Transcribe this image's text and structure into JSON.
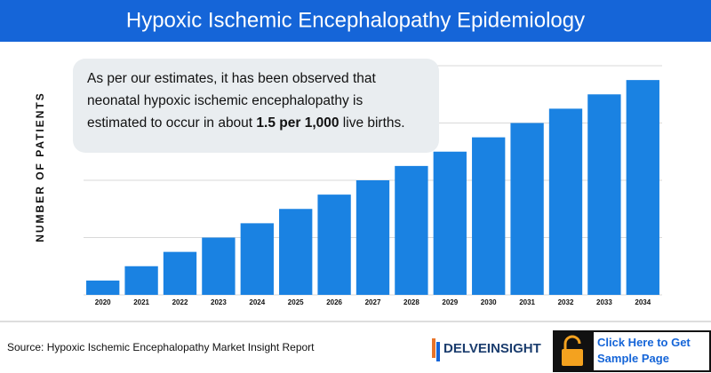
{
  "chart_data": {
    "type": "bar",
    "title": "Hypoxic Ischemic Encephalopathy Epidemiology",
    "y_label": "NUMBER OF PATIENTS",
    "categories": [
      "2020",
      "2021",
      "2022",
      "2023",
      "2024",
      "2025",
      "2026",
      "2027",
      "2028",
      "2029",
      "2030",
      "2031",
      "2032",
      "2033",
      "2034"
    ],
    "values": [
      0.25,
      0.5,
      0.75,
      1.0,
      1.25,
      1.5,
      1.75,
      2.0,
      2.25,
      2.5,
      2.75,
      3.0,
      3.25,
      3.5,
      3.75
    ],
    "color": "#1a82e2",
    "ylim": [
      0,
      4
    ],
    "yticks": [
      0,
      1,
      2,
      3,
      4
    ],
    "grid": true,
    "tick_labels": false,
    "callout": {
      "before": "As per our estimates, it has been observed that neonatal hypoxic ischemic encephalopathy is estimated to occur in about ",
      "bold": "1.5 per 1,000",
      "after": " live births."
    }
  },
  "footer": {
    "source": "Source: Hypoxic Ischemic Encephalopathy Market Insight Report",
    "logo": "DELVEINSIGHT",
    "button": "Click Here to Get Sample Page"
  }
}
